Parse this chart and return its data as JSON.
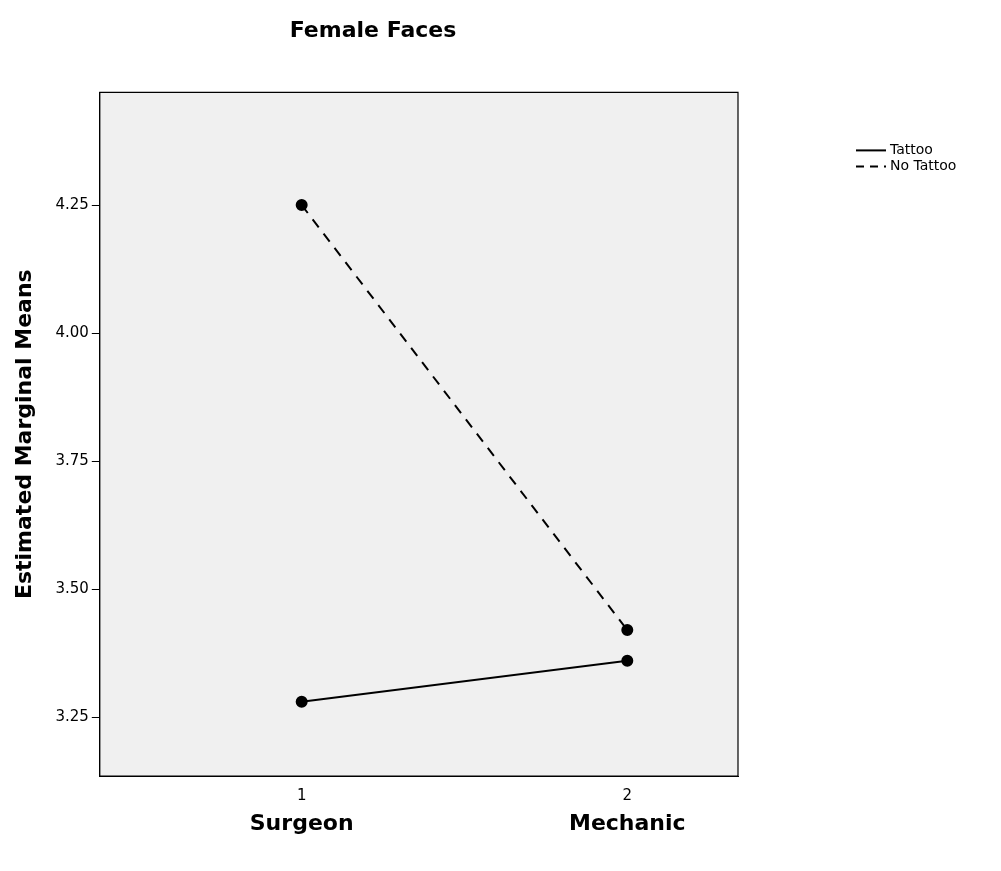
{
  "chart_data": {
    "type": "line",
    "title": "Female Faces",
    "ylabel": "Estimated Marginal Means",
    "x": [
      1,
      2
    ],
    "series": [
      {
        "name": "Tattoo",
        "color": "#000000",
        "values": [
          3.28,
          3.36
        ],
        "line_style": "solid"
      },
      {
        "name": "No Tattoo",
        "color": "#000000",
        "values": [
          4.25,
          3.42
        ],
        "line_style": "dashed"
      }
    ],
    "xlim": [
      0.38,
      2.34
    ],
    "xticks": [
      1,
      2
    ],
    "ylim": [
      3.135,
      4.47
    ],
    "yticks": [
      {
        "value": 3.25,
        "label": "3.25"
      },
      {
        "value": 3.5,
        "label": "3.50"
      },
      {
        "value": 3.75,
        "label": "3.75"
      },
      {
        "value": 4,
        "label": "4.00"
      },
      {
        "value": 4.25,
        "label": "4.25"
      }
    ],
    "annotations": [
      "Surgeon",
      "Mechanic"
    ],
    "marker": "circle",
    "grid": false,
    "legend": "top right"
  }
}
